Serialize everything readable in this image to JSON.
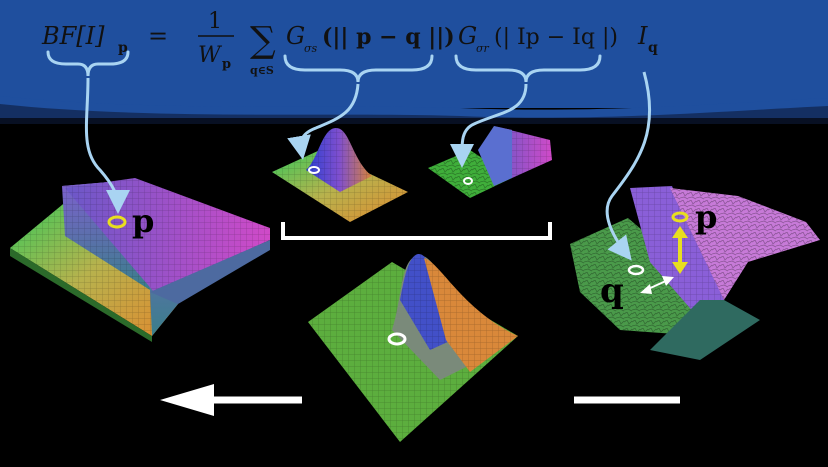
{
  "colors": {
    "banner": "#1f4f9e",
    "arrow_cyan": "#a9d4f2",
    "yellow": "#e8df1f",
    "white": "#ffffff"
  },
  "equation": {
    "lhs": "BF[I]",
    "lhs_sub": "p",
    "equals": "=",
    "frac_num": "1",
    "frac_den": "W",
    "frac_den_sub": "p",
    "sum_symbol": "∑",
    "sum_sub": "q∈S",
    "gs": "G",
    "gs_sub": "σs",
    "gs_arg": "(|| p − q ||)",
    "gr": "G",
    "gr_sub": "σr",
    "gr_arg": "(| Ip − Iq |)",
    "iq": "I",
    "iq_sub": "q"
  },
  "labels": {
    "p_left": "p",
    "p_right": "p",
    "q_right": "q"
  },
  "icons": [
    "left-arrow-icon",
    "brace-icon",
    "yellow-circle-marker",
    "white-circle-marker"
  ]
}
